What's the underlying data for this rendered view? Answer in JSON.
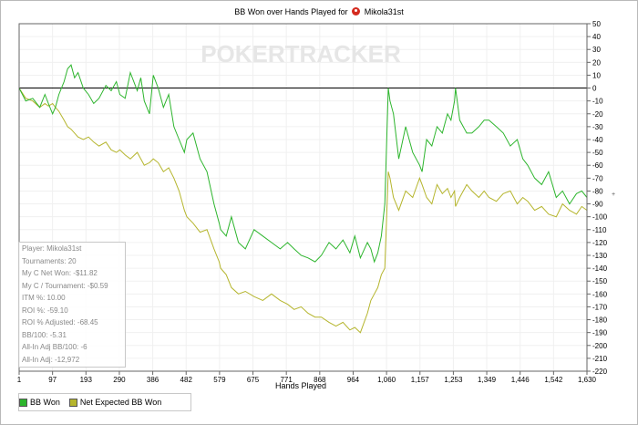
{
  "title": {
    "prefix": "BB Won over Hands Played for",
    "player": "Mikola31st",
    "icon": "pokertracker-logo-icon"
  },
  "watermark": "POKERTRACKER",
  "side_icon": "+",
  "stats": {
    "rows": [
      "Player: Mikola31st",
      "Tournaments: 20",
      "My C Net Won: -$11.82",
      "My C / Tournament: -$0.59",
      "ITM %: 10.00",
      "ROI %: -59.10",
      "ROI % Adjusted: -68.45",
      "BB/100: -5.31",
      "All-In Adj BB/100: -6",
      "All-In Adj: -12,972"
    ]
  },
  "legend": {
    "items": [
      {
        "label": "BB Won",
        "color": "#2db52d"
      },
      {
        "label": "Net Expected BB Won",
        "color": "#b5b52d"
      }
    ]
  },
  "chart_data": {
    "type": "line",
    "title": "BB Won over Hands Played for Mikola31st",
    "xlabel": "Hands Played",
    "ylabel": "",
    "xlim": [
      1,
      1630
    ],
    "ylim": [
      -220,
      50
    ],
    "x_ticks": [
      "1",
      "97",
      "193",
      "290",
      "386",
      "482",
      "579",
      "675",
      "771",
      "868",
      "964",
      "1,060",
      "1,157",
      "1,253",
      "1,349",
      "1,446",
      "1,542",
      "1,630"
    ],
    "y_ticks": [
      50,
      40,
      30,
      20,
      10,
      0,
      -10,
      -20,
      -30,
      -40,
      -50,
      -60,
      -70,
      -80,
      -90,
      -100,
      -110,
      -120,
      -130,
      -140,
      -150,
      -160,
      -170,
      -180,
      -190,
      -200,
      -210,
      -220
    ],
    "grid": true,
    "y_axis_side": "right",
    "legend_position": "bottom-left",
    "series": [
      {
        "name": "BB Won",
        "color": "#2db52d",
        "x": [
          1,
          20,
          40,
          60,
          75,
          85,
          97,
          105,
          115,
          130,
          140,
          150,
          160,
          170,
          185,
          200,
          215,
          230,
          250,
          265,
          280,
          290,
          305,
          320,
          340,
          350,
          360,
          375,
          386,
          400,
          415,
          430,
          445,
          460,
          475,
          482,
          500,
          520,
          540,
          560,
          575,
          579,
          595,
          610,
          630,
          650,
          675,
          700,
          725,
          750,
          771,
          790,
          810,
          830,
          850,
          868,
          890,
          910,
          930,
          950,
          964,
          980,
          1000,
          1010,
          1020,
          1030,
          1040,
          1050,
          1060,
          1065,
          1075,
          1090,
          1110,
          1130,
          1150,
          1157,
          1170,
          1185,
          1200,
          1215,
          1230,
          1240,
          1250,
          1253,
          1265,
          1285,
          1300,
          1320,
          1335,
          1349,
          1370,
          1390,
          1410,
          1430,
          1446,
          1460,
          1480,
          1500,
          1520,
          1542,
          1560,
          1580,
          1600,
          1615,
          1630
        ],
        "y": [
          0,
          -10,
          -8,
          -15,
          -5,
          -12,
          -20,
          -15,
          -5,
          5,
          15,
          18,
          8,
          12,
          0,
          -5,
          -12,
          -8,
          2,
          -2,
          5,
          -5,
          -8,
          12,
          -2,
          8,
          -10,
          -20,
          10,
          0,
          -15,
          -5,
          -30,
          -40,
          -50,
          -40,
          -35,
          -55,
          -65,
          -90,
          -105,
          -110,
          -115,
          -100,
          -120,
          -125,
          -110,
          -115,
          -120,
          -125,
          -120,
          -125,
          -130,
          -132,
          -135,
          -130,
          -120,
          -125,
          -118,
          -128,
          -115,
          -132,
          -120,
          -125,
          -135,
          -128,
          -115,
          -90,
          0,
          -10,
          -20,
          -55,
          -30,
          -50,
          -60,
          -65,
          -40,
          -45,
          -30,
          -35,
          -20,
          -25,
          -10,
          0,
          -25,
          -35,
          -35,
          -30,
          -25,
          -25,
          -30,
          -35,
          -45,
          -40,
          -55,
          -60,
          -70,
          -75,
          -65,
          -85,
          -80,
          -90,
          -82,
          -80,
          -85
        ]
      },
      {
        "name": "Net Expected BB Won",
        "color": "#b5b52d",
        "x": [
          1,
          20,
          40,
          60,
          75,
          85,
          97,
          105,
          115,
          130,
          140,
          150,
          160,
          170,
          185,
          200,
          215,
          230,
          250,
          265,
          280,
          290,
          305,
          320,
          340,
          350,
          360,
          375,
          386,
          400,
          415,
          430,
          445,
          460,
          475,
          482,
          500,
          520,
          540,
          560,
          575,
          579,
          595,
          610,
          630,
          650,
          675,
          700,
          725,
          750,
          771,
          790,
          810,
          830,
          850,
          868,
          890,
          910,
          930,
          950,
          964,
          980,
          1000,
          1010,
          1020,
          1030,
          1040,
          1050,
          1060,
          1065,
          1075,
          1090,
          1110,
          1130,
          1150,
          1157,
          1170,
          1185,
          1200,
          1215,
          1230,
          1240,
          1250,
          1253,
          1265,
          1285,
          1300,
          1320,
          1335,
          1349,
          1370,
          1390,
          1410,
          1430,
          1446,
          1460,
          1480,
          1500,
          1520,
          1542,
          1560,
          1580,
          1600,
          1615,
          1630
        ],
        "y": [
          0,
          -8,
          -10,
          -15,
          -12,
          -14,
          -12,
          -15,
          -18,
          -25,
          -30,
          -32,
          -35,
          -38,
          -40,
          -38,
          -42,
          -45,
          -42,
          -48,
          -50,
          -48,
          -52,
          -55,
          -50,
          -55,
          -60,
          -58,
          -55,
          -58,
          -65,
          -62,
          -70,
          -80,
          -95,
          -100,
          -105,
          -112,
          -110,
          -125,
          -135,
          -140,
          -145,
          -155,
          -160,
          -158,
          -162,
          -165,
          -160,
          -165,
          -168,
          -172,
          -170,
          -175,
          -178,
          -178,
          -182,
          -185,
          -182,
          -188,
          -186,
          -190,
          -175,
          -165,
          -160,
          -155,
          -145,
          -140,
          -65,
          -70,
          -85,
          -95,
          -80,
          -85,
          -70,
          -75,
          -85,
          -90,
          -75,
          -82,
          -78,
          -85,
          -80,
          -92,
          -85,
          -75,
          -80,
          -85,
          -80,
          -85,
          -88,
          -82,
          -80,
          -90,
          -85,
          -88,
          -95,
          -92,
          -98,
          -100,
          -90,
          -95,
          -98,
          -92,
          -95
        ]
      }
    ]
  }
}
